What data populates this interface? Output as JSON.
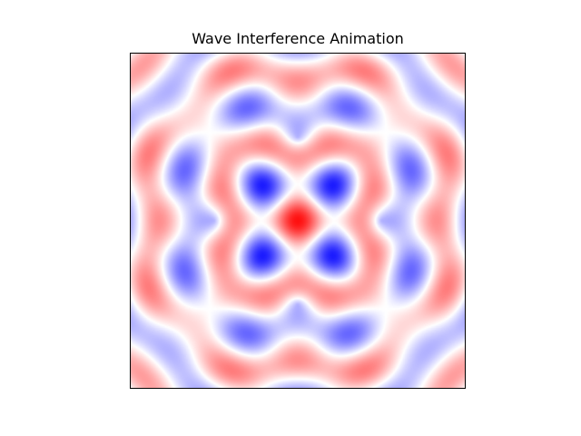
{
  "chart_data": {
    "type": "heatmap",
    "title": "Wave Interference Animation",
    "xlabel": "",
    "ylabel": "",
    "axes_ticks": "none",
    "grid": false,
    "legend": "none",
    "colormap": "bwr",
    "value_range": [
      -1,
      1
    ],
    "colors": {
      "negative": "#0000ff",
      "zero": "#ffffff",
      "positive": "#ff0000",
      "frame": "#000000"
    },
    "field": {
      "sources": [
        {
          "x": -0.5,
          "y": 0.0
        },
        {
          "x": 0.5,
          "y": 0.0
        },
        {
          "x": 0.0,
          "y": -0.5
        },
        {
          "x": 0.0,
          "y": 0.5
        }
      ],
      "domain": [
        -1,
        1
      ],
      "wavenumber": 15.0,
      "phase": 0.0
    }
  }
}
